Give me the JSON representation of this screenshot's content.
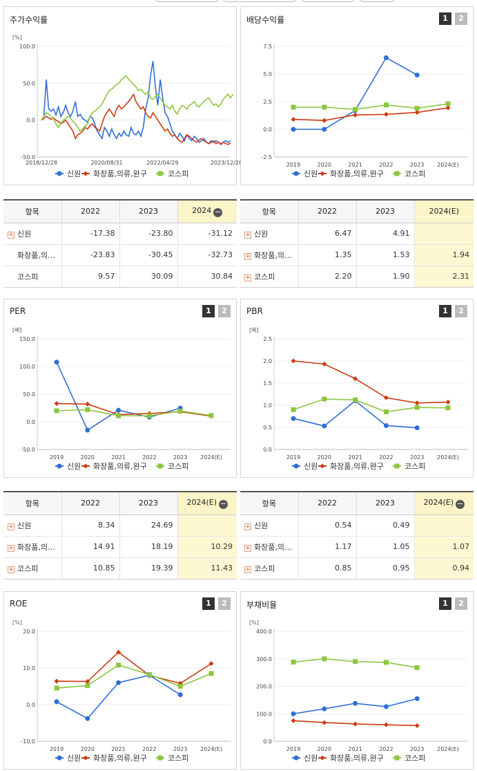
{
  "legend": [
    "신원",
    "화장품,의류,완구",
    "코스피"
  ],
  "colors": [
    "#2f6fd6",
    "#cc3a10",
    "#8cc63f"
  ],
  "tabs": [
    "1",
    "2"
  ],
  "charts": {
    "price": {
      "title": "주가수익률",
      "unit": "[%]",
      "chart_data": {
        "type": "line",
        "yticks": [
          "100.0",
          "50.0",
          "0.0",
          "-50.0"
        ],
        "ylim": [
          -50,
          100
        ],
        "xticks": [
          "2018/12/28",
          "2020/08/31",
          "2022/04/29",
          "2023/12/28"
        ],
        "series": [
          {
            "name": "신원",
            "values": [
              0,
              5,
              55,
              15,
              12,
              15,
              7,
              18,
              5,
              10,
              20,
              10,
              5,
              12,
              25,
              5,
              8,
              2,
              0,
              -3,
              5,
              3,
              -5,
              -15,
              -20,
              -25,
              -10,
              -15,
              -22,
              -12,
              -20,
              -25,
              -18,
              -22,
              -15,
              -20,
              -22,
              -10,
              -18,
              -20,
              -15,
              -22,
              -10,
              15,
              30,
              60,
              80,
              45,
              20,
              55,
              30,
              10,
              5,
              -5,
              -15,
              -20,
              -25,
              -18,
              -22,
              -28,
              -20,
              -25,
              -28,
              -22,
              -25,
              -30,
              -28,
              -25,
              -30,
              -32,
              -28,
              -30,
              -28,
              -30,
              -32,
              -30,
              -28,
              -30,
              -28
            ]
          },
          {
            "name": "화장품,의류,완구",
            "values": [
              0,
              2,
              5,
              3,
              1,
              3,
              0,
              -2,
              -5,
              -3,
              0,
              -5,
              -10,
              -15,
              -25,
              -20,
              -18,
              -15,
              -10,
              -12,
              -8,
              -5,
              -10,
              -12,
              -15,
              -5,
              5,
              10,
              15,
              10,
              5,
              15,
              20,
              15,
              18,
              22,
              25,
              30,
              35,
              25,
              20,
              15,
              18,
              10,
              5,
              3,
              10,
              5,
              0,
              -5,
              -10,
              -15,
              -12,
              -18,
              -22,
              -20,
              -25,
              -28,
              -30,
              -25,
              -20,
              -22,
              -25,
              -28,
              -30,
              -27,
              -25,
              -28,
              -30,
              -32,
              -30,
              -28,
              -32,
              -30,
              -33,
              -30,
              -32,
              -33,
              -31
            ]
          },
          {
            "name": "코스피",
            "values": [
              0,
              5,
              10,
              8,
              5,
              2,
              -5,
              -10,
              -5,
              0,
              2,
              5,
              3,
              -2,
              -5,
              -10,
              -15,
              -12,
              -8,
              -5,
              5,
              10,
              12,
              15,
              18,
              22,
              28,
              35,
              40,
              42,
              45,
              48,
              50,
              55,
              58,
              60,
              55,
              52,
              48,
              45,
              40,
              42,
              38,
              35,
              38,
              30,
              28,
              32,
              35,
              30,
              25,
              20,
              18,
              15,
              20,
              12,
              8,
              15,
              20,
              18,
              15,
              20,
              22,
              25,
              20,
              18,
              22,
              25,
              28,
              30,
              25,
              20,
              22,
              18,
              22,
              28,
              32,
              35,
              30,
              35
            ]
          }
        ]
      }
    },
    "dividend": {
      "title": "배당수익률",
      "unit": "",
      "chart_data": {
        "type": "line",
        "yticks": [
          "7.5",
          "5.0",
          "2.5",
          "0.0",
          "-2.5"
        ],
        "ylim": [
          -2.5,
          7.5
        ],
        "categories": [
          "2019",
          "2020",
          "2021",
          "2022",
          "2023",
          "2024(E)"
        ],
        "series": [
          {
            "name": "신원",
            "values": [
              0.0,
              0.0,
              1.7,
              6.47,
              4.91,
              null
            ]
          },
          {
            "name": "화장품,의류,완구",
            "values": [
              0.9,
              0.8,
              1.3,
              1.35,
              1.53,
              1.94
            ]
          },
          {
            "name": "코스피",
            "values": [
              2.0,
              2.0,
              1.8,
              2.2,
              1.9,
              2.31
            ]
          }
        ]
      }
    },
    "per": {
      "title": "PER",
      "unit": "[배]",
      "chart_data": {
        "type": "line",
        "yticks": [
          "150.0",
          "100.0",
          "50.0",
          "0.0",
          "-50.0"
        ],
        "ylim": [
          -50,
          150
        ],
        "categories": [
          "2019",
          "2020",
          "2021",
          "2022",
          "2023",
          "2024(E)"
        ],
        "series": [
          {
            "name": "신원",
            "values": [
              108,
              -15,
              21,
              8.34,
              24.69,
              null
            ]
          },
          {
            "name": "화장품,의류,완구",
            "values": [
              33,
              32,
              13,
              14.91,
              18.19,
              10.29
            ]
          },
          {
            "name": "코스피",
            "values": [
              20,
              22,
              11,
              10.85,
              19.39,
              11.43
            ]
          }
        ]
      }
    },
    "pbr": {
      "title": "PBR",
      "unit": "[배]",
      "chart_data": {
        "type": "line",
        "yticks": [
          "2.5",
          "2.0",
          "1.5",
          "1.0",
          "0.5",
          "0.0"
        ],
        "ylim": [
          0,
          2.5
        ],
        "categories": [
          "2019",
          "2020",
          "2021",
          "2022",
          "2023",
          "2024(E)"
        ],
        "series": [
          {
            "name": "신원",
            "values": [
              0.7,
              0.53,
              1.1,
              0.54,
              0.49,
              null
            ]
          },
          {
            "name": "화장품,의류,완구",
            "values": [
              2.0,
              1.93,
              1.6,
              1.17,
              1.05,
              1.07
            ]
          },
          {
            "name": "코스피",
            "values": [
              0.9,
              1.14,
              1.12,
              0.85,
              0.95,
              0.94
            ]
          }
        ]
      }
    },
    "roe": {
      "title": "ROE",
      "unit": "[%]",
      "chart_data": {
        "type": "line",
        "yticks": [
          "20.0",
          "10.0",
          "0.0",
          "-10.0"
        ],
        "ylim": [
          -10,
          20
        ],
        "categories": [
          "2019",
          "2020",
          "2021",
          "2022",
          "2023",
          "2024(E)"
        ],
        "series": [
          {
            "name": "신원",
            "values": [
              0.8,
              -3.8,
              6.0,
              8.0,
              2.7,
              null
            ]
          },
          {
            "name": "화장품,의류,완구",
            "values": [
              6.4,
              6.3,
              14.3,
              8.0,
              5.8,
              11.2
            ]
          },
          {
            "name": "코스피",
            "values": [
              4.5,
              5.2,
              10.8,
              8.2,
              5.0,
              8.5
            ]
          }
        ]
      }
    },
    "debt": {
      "title": "부채비율",
      "unit": "[%]",
      "chart_data": {
        "type": "line",
        "yticks": [
          "400.0",
          "300.0",
          "200.0",
          "100.0",
          "0.0"
        ],
        "ylim": [
          0,
          400
        ],
        "categories": [
          "2019",
          "2020",
          "2021",
          "2022",
          "2023",
          "2024(E)"
        ],
        "series": [
          {
            "name": "신원",
            "values": [
              100,
              118,
              138,
              126,
              155,
              null
            ]
          },
          {
            "name": "화장품,의류,완구",
            "values": [
              75,
              68,
              63,
              60,
              57,
              null
            ]
          },
          {
            "name": "코스피",
            "values": [
              288,
              300,
              290,
              287,
              268,
              null
            ]
          }
        ]
      }
    }
  },
  "tables": {
    "price": {
      "head": [
        "항목",
        "2022",
        "2023",
        "2024"
      ],
      "rows": [
        {
          "name": "신원",
          "plus": true,
          "vals": [
            "-17.38",
            "-23.80",
            "-31.12"
          ]
        },
        {
          "name": "화장품,의…",
          "plus": false,
          "vals": [
            "-23.83",
            "-30.45",
            "-32.73"
          ]
        },
        {
          "name": "코스피",
          "plus": false,
          "vals": [
            "9.57",
            "30.09",
            "30.84"
          ]
        }
      ]
    },
    "dividend": {
      "head": [
        "항목",
        "2022",
        "2023",
        "2024(E)"
      ],
      "rows": [
        {
          "name": "신원",
          "plus": true,
          "vals": [
            "6.47",
            "4.91",
            ""
          ]
        },
        {
          "name": "화장품,의…",
          "plus": true,
          "vals": [
            "1.35",
            "1.53",
            "1.94"
          ]
        },
        {
          "name": "코스피",
          "plus": true,
          "vals": [
            "2.20",
            "1.90",
            "2.31"
          ]
        }
      ]
    },
    "per": {
      "head": [
        "항목",
        "2022",
        "2023",
        "2024(E)"
      ],
      "rows": [
        {
          "name": "신원",
          "plus": true,
          "vals": [
            "8.34",
            "24.69",
            ""
          ]
        },
        {
          "name": "화장품,의…",
          "plus": true,
          "vals": [
            "14.91",
            "18.19",
            "10.29"
          ]
        },
        {
          "name": "코스피",
          "plus": true,
          "vals": [
            "10.85",
            "19.39",
            "11.43"
          ]
        }
      ]
    },
    "pbr": {
      "head": [
        "항목",
        "2022",
        "2023",
        "2024(E)"
      ],
      "rows": [
        {
          "name": "신원",
          "plus": true,
          "vals": [
            "0.54",
            "0.49",
            ""
          ]
        },
        {
          "name": "화장품,의…",
          "plus": true,
          "vals": [
            "1.17",
            "1.05",
            "1.07"
          ]
        },
        {
          "name": "코스피",
          "plus": true,
          "vals": [
            "0.85",
            "0.95",
            "0.94"
          ]
        }
      ]
    }
  }
}
